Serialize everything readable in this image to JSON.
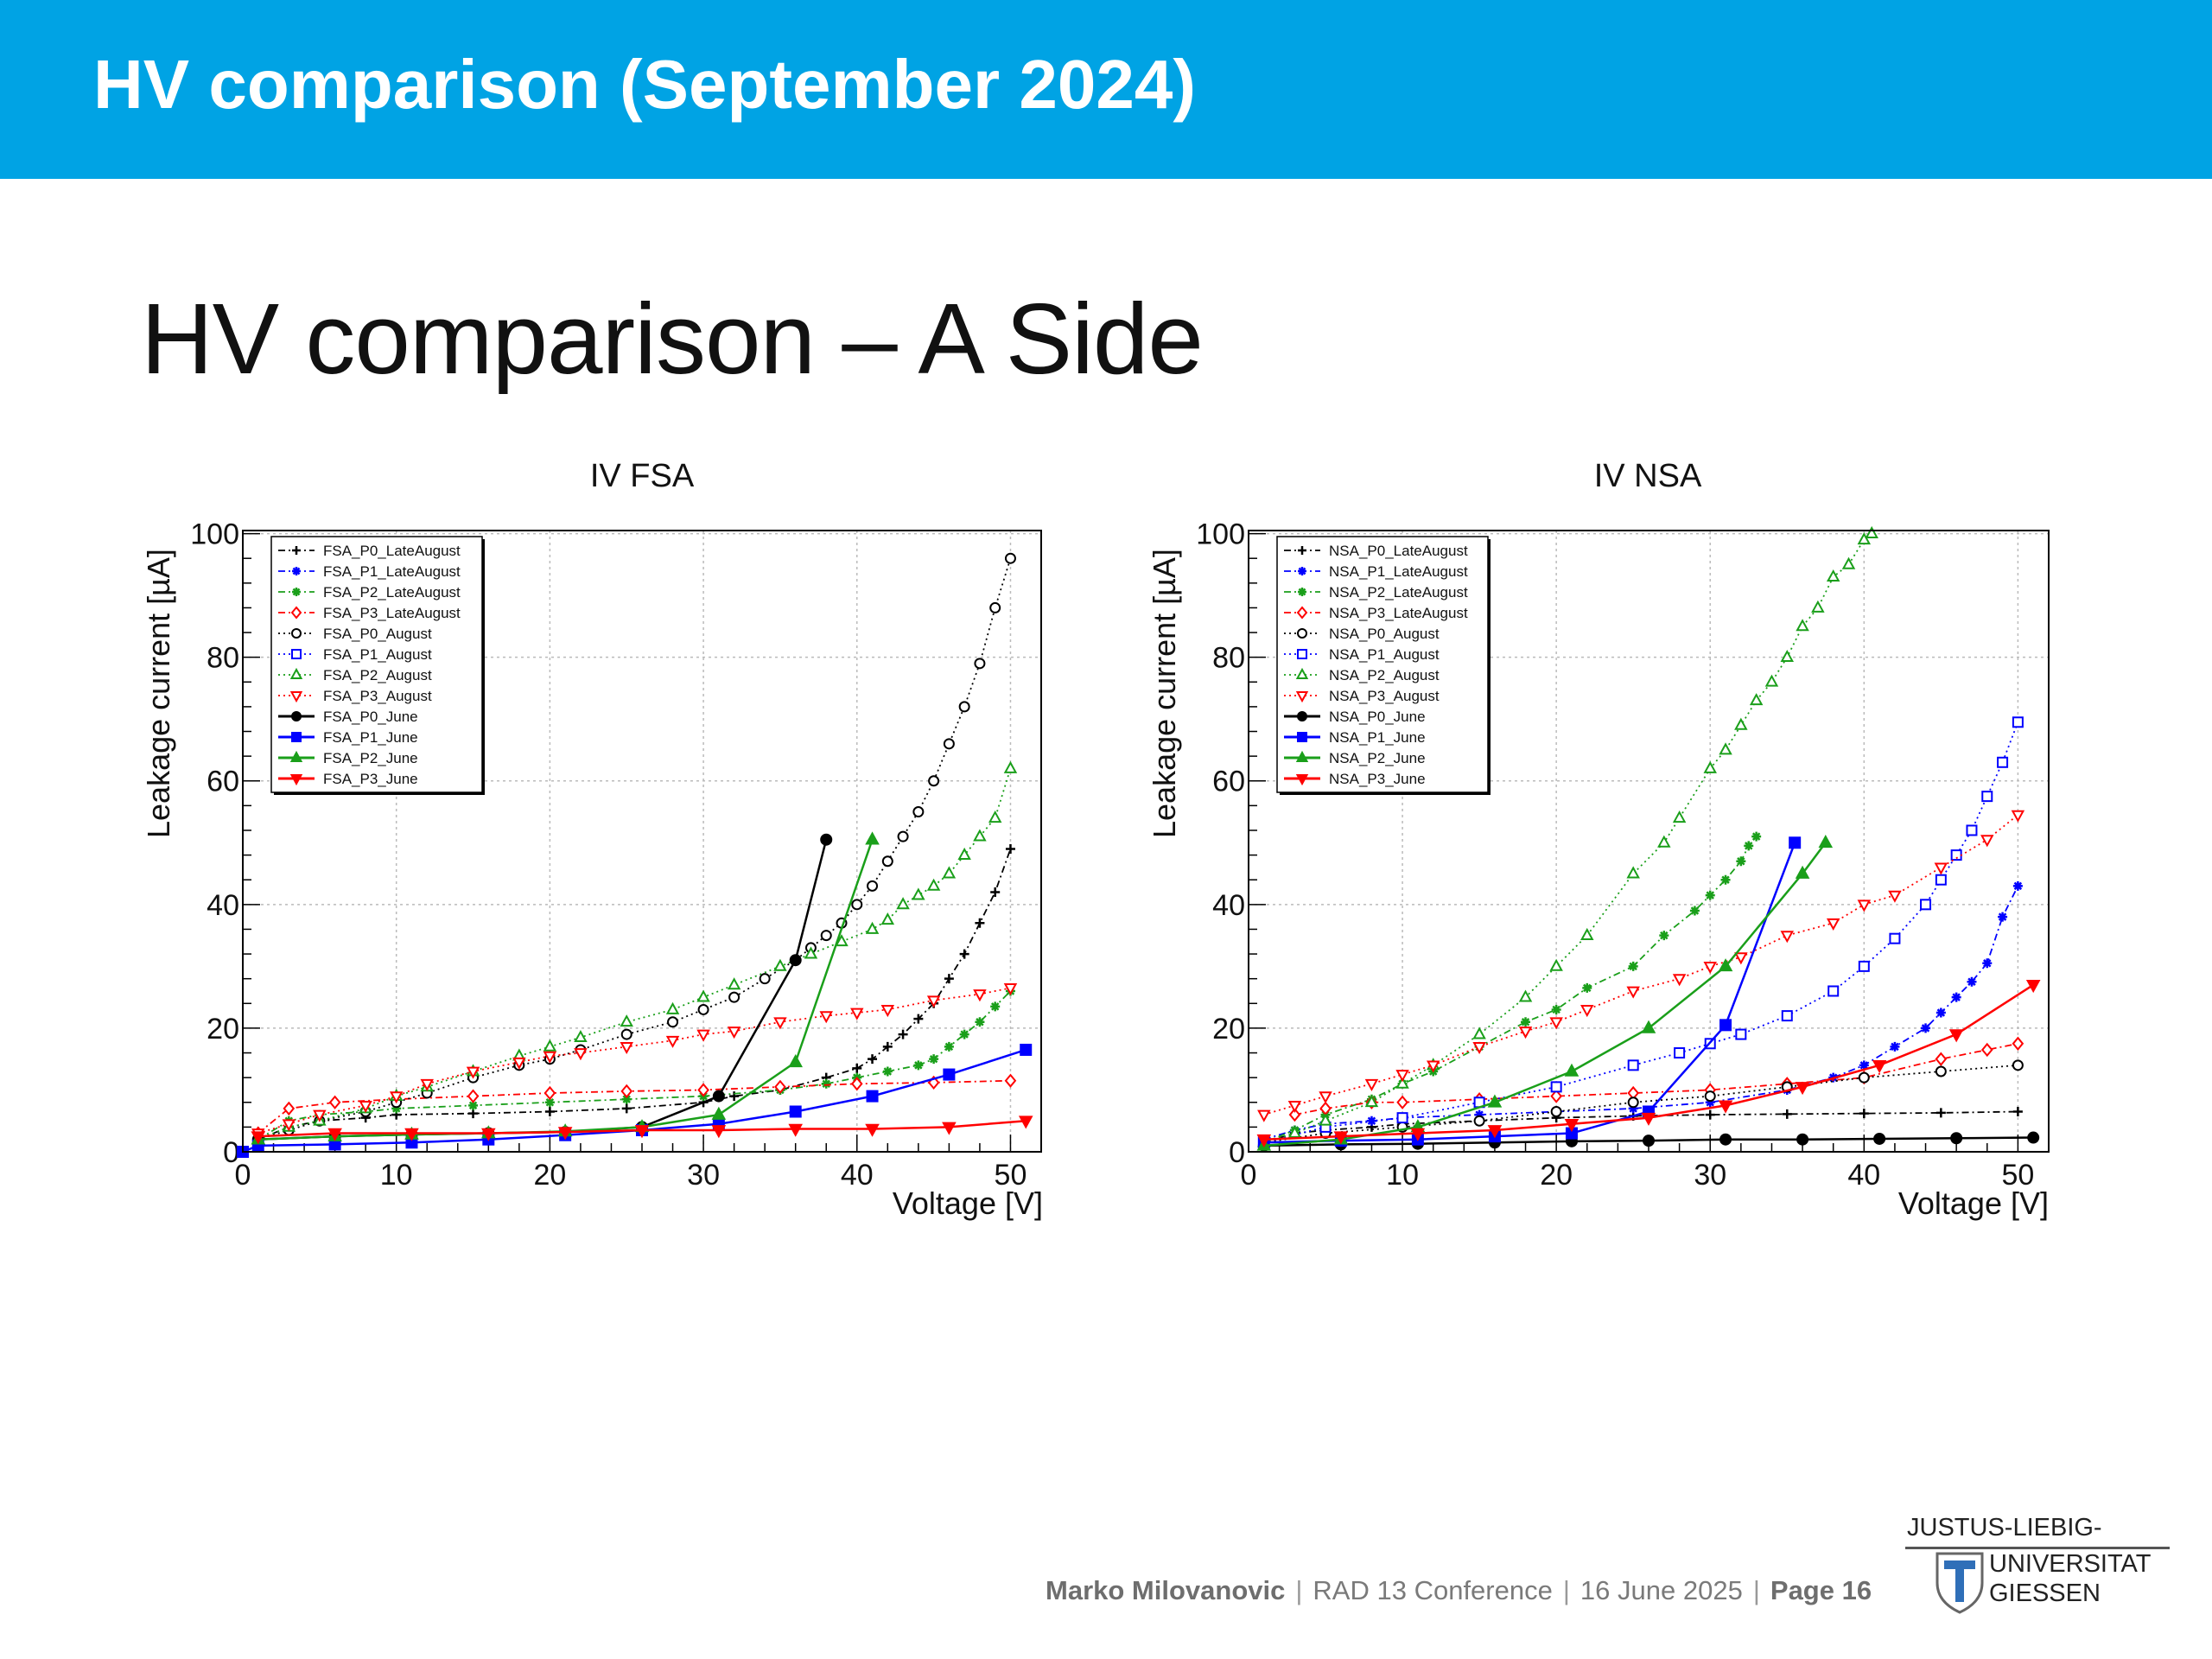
{
  "header": {
    "title": "HV comparison (September 2024)",
    "background_color": "#00a3e4"
  },
  "slide_title": "HV comparison – A Side",
  "footer": {
    "author": "Marko Milovanovic",
    "conference": "RAD 13 Conference",
    "date": "16 June 2025",
    "page": "Page 16"
  },
  "logo": {
    "line1": "JUSTUS-LIEBIG-",
    "line2": "UNIVERSITAT",
    "line3": "GIESSEN"
  },
  "chart_data": [
    {
      "type": "line",
      "title": "IV FSA",
      "xlabel": "Voltage [V]",
      "ylabel": "Leakage current [µA]",
      "xlim": [
        0,
        52
      ],
      "ylim": [
        0,
        100.5
      ],
      "xticks": [
        0,
        10,
        20,
        30,
        40,
        50
      ],
      "yticks": [
        0,
        20,
        40,
        60,
        80,
        100
      ],
      "grid": true,
      "legend": "top-left",
      "series": [
        {
          "name": "FSA_P0_LateAugust",
          "color": "#000000",
          "marker": "plus",
          "line": "dashdot",
          "x": [
            1,
            3,
            5,
            8,
            10,
            15,
            20,
            25,
            30,
            32,
            35,
            38,
            40,
            41,
            42,
            43,
            44,
            45,
            46,
            47,
            48,
            49,
            50
          ],
          "y": [
            2,
            4,
            5,
            5.5,
            6,
            6.2,
            6.5,
            7,
            8,
            9,
            10,
            12,
            13.5,
            15,
            17,
            19,
            21.5,
            24,
            28,
            32,
            37,
            42,
            49
          ]
        },
        {
          "name": "FSA_P1_LateAugust",
          "color": "#0000ff",
          "marker": "star",
          "line": "dashdot",
          "x": [],
          "y": []
        },
        {
          "name": "FSA_P2_LateAugust",
          "color": "#1a9f1a",
          "marker": "star",
          "line": "dashdot",
          "x": [
            1,
            3,
            5,
            8,
            10,
            15,
            20,
            25,
            30,
            35,
            38,
            40,
            42,
            44,
            45,
            46,
            47,
            48,
            49,
            50
          ],
          "y": [
            2,
            5,
            6,
            6.5,
            7,
            7.5,
            8,
            8.5,
            9,
            10,
            11,
            12,
            13,
            14,
            15,
            17,
            19,
            21,
            23.5,
            26
          ]
        },
        {
          "name": "FSA_P3_LateAugust",
          "color": "#ff0000",
          "marker": "diamond",
          "line": "dashdot",
          "x": [
            1,
            3,
            6,
            10,
            15,
            20,
            25,
            30,
            35,
            40,
            45,
            50
          ],
          "y": [
            3,
            7,
            8,
            8.5,
            9,
            9.5,
            9.8,
            10,
            10.5,
            11,
            11.2,
            11.5
          ]
        },
        {
          "name": "FSA_P0_August",
          "color": "#000000",
          "marker": "circle-open",
          "line": "dotted",
          "x": [
            1,
            3,
            5,
            8,
            10,
            12,
            15,
            18,
            20,
            22,
            25,
            28,
            30,
            32,
            34,
            36,
            37,
            38,
            39,
            40,
            41,
            42,
            43,
            44,
            45,
            46,
            47,
            48,
            49,
            50
          ],
          "y": [
            2,
            3.5,
            5,
            6.5,
            8,
            9.5,
            12,
            14,
            15,
            16.5,
            19,
            21,
            23,
            25,
            28,
            31,
            33,
            35,
            37,
            40,
            43,
            47,
            51,
            55,
            60,
            66,
            72,
            79,
            88,
            96
          ]
        },
        {
          "name": "FSA_P1_August",
          "color": "#0000ff",
          "marker": "square-open",
          "line": "dotted",
          "x": [],
          "y": []
        },
        {
          "name": "FSA_P2_August",
          "color": "#1a9f1a",
          "marker": "triangle-up-open",
          "line": "dotted",
          "x": [
            1,
            3,
            5,
            8,
            10,
            12,
            15,
            18,
            20,
            22,
            25,
            28,
            30,
            32,
            35,
            37,
            39,
            41,
            42,
            43,
            44,
            45,
            46,
            47,
            48,
            49,
            50
          ],
          "y": [
            2,
            4,
            5,
            7,
            9,
            10.5,
            13,
            15.5,
            17,
            18.5,
            21,
            23,
            25,
            27,
            30,
            32,
            34,
            36,
            37.5,
            40,
            41.5,
            43,
            45,
            48,
            51,
            54,
            62
          ]
        },
        {
          "name": "FSA_P3_August",
          "color": "#ff0000",
          "marker": "triangle-down-open",
          "line": "dotted",
          "x": [
            1,
            3,
            5,
            8,
            10,
            12,
            15,
            18,
            20,
            22,
            25,
            28,
            30,
            32,
            35,
            38,
            40,
            42,
            45,
            48,
            50
          ],
          "y": [
            3,
            4.5,
            6,
            7.5,
            9,
            11,
            13,
            14.5,
            15.5,
            16,
            17,
            18,
            19,
            19.5,
            21,
            22,
            22.5,
            23,
            24.5,
            25.5,
            26.5
          ]
        },
        {
          "name": "FSA_P0_June",
          "color": "#000000",
          "marker": "circle",
          "line": "solid",
          "x": [
            1,
            6,
            11,
            16,
            21,
            26,
            31,
            36,
            38
          ],
          "y": [
            2,
            2.5,
            2.8,
            3,
            3.2,
            4,
            9,
            31,
            50.5
          ]
        },
        {
          "name": "FSA_P1_June",
          "color": "#0000ff",
          "marker": "square",
          "line": "solid",
          "x": [
            0,
            1,
            6,
            11,
            16,
            21,
            26,
            31,
            36,
            41,
            46,
            51
          ],
          "y": [
            0,
            1,
            1.2,
            1.5,
            2,
            2.7,
            3.5,
            4.5,
            6.5,
            9,
            12.5,
            16.5
          ]
        },
        {
          "name": "FSA_P2_June",
          "color": "#1a9f1a",
          "marker": "triangle-up",
          "line": "solid",
          "x": [
            1,
            6,
            11,
            16,
            21,
            26,
            31,
            36,
            41
          ],
          "y": [
            2,
            2.5,
            2.8,
            3,
            3.3,
            4,
            6,
            14.5,
            50.5
          ]
        },
        {
          "name": "FSA_P3_June",
          "color": "#ff0000",
          "marker": "triangle-down",
          "line": "solid",
          "x": [
            1,
            6,
            11,
            16,
            21,
            26,
            31,
            36,
            41,
            46,
            51
          ],
          "y": [
            2.5,
            3,
            3,
            3,
            3.2,
            3.5,
            3.5,
            3.7,
            3.7,
            4,
            5
          ]
        }
      ]
    },
    {
      "type": "line",
      "title": "IV NSA",
      "xlabel": "Voltage [V]",
      "ylabel": "Leakage current [µA]",
      "xlim": [
        0,
        52
      ],
      "ylim": [
        0,
        100.5
      ],
      "xticks": [
        0,
        10,
        20,
        30,
        40,
        50
      ],
      "yticks": [
        0,
        20,
        40,
        60,
        80,
        100
      ],
      "grid": true,
      "legend": "top-left",
      "series": [
        {
          "name": "NSA_P0_LateAugust",
          "color": "#000000",
          "marker": "plus",
          "line": "dashdot",
          "x": [
            1,
            3,
            5,
            8,
            10,
            15,
            20,
            25,
            30,
            35,
            40,
            45,
            50
          ],
          "y": [
            1.5,
            3,
            3.5,
            4,
            4.5,
            5,
            5.5,
            5.8,
            6,
            6.1,
            6.2,
            6.3,
            6.5
          ]
        },
        {
          "name": "NSA_P1_LateAugust",
          "color": "#0000ff",
          "marker": "star",
          "line": "dashdot",
          "x": [
            1,
            3,
            5,
            8,
            10,
            15,
            20,
            25,
            30,
            35,
            38,
            40,
            42,
            44,
            45,
            46,
            47,
            48,
            49,
            50
          ],
          "y": [
            2,
            3.5,
            4.5,
            5,
            5.5,
            6,
            6.5,
            7,
            8,
            10,
            12,
            14,
            17,
            20,
            22.5,
            25,
            27.5,
            30.5,
            38,
            43
          ]
        },
        {
          "name": "NSA_P2_LateAugust",
          "color": "#1a9f1a",
          "marker": "star",
          "line": "dashdot",
          "x": [
            1,
            3,
            5,
            8,
            10,
            12,
            15,
            18,
            20,
            22,
            25,
            27,
            29,
            30,
            31,
            32,
            32.5,
            33
          ],
          "y": [
            1.5,
            3.5,
            6,
            8.5,
            11,
            13,
            17,
            21,
            23,
            26.5,
            30,
            35,
            39,
            41.5,
            44,
            47,
            49.5,
            51
          ]
        },
        {
          "name": "NSA_P3_LateAugust",
          "color": "#ff0000",
          "marker": "diamond",
          "line": "dashdot",
          "x": [
            3,
            5,
            8,
            10,
            15,
            20,
            25,
            30,
            35,
            40,
            45,
            48,
            50
          ],
          "y": [
            6,
            7,
            8,
            8,
            8.5,
            9,
            9.5,
            10,
            11,
            12,
            15,
            16.5,
            17.5
          ]
        },
        {
          "name": "NSA_P0_August",
          "color": "#000000",
          "marker": "circle-open",
          "line": "dotted",
          "x": [
            1,
            5,
            10,
            15,
            20,
            25,
            30,
            35,
            40,
            45,
            50
          ],
          "y": [
            1.5,
            3,
            4,
            5,
            6.5,
            8,
            9,
            10.5,
            12,
            13,
            14
          ]
        },
        {
          "name": "NSA_P1_August",
          "color": "#0000ff",
          "marker": "square-open",
          "line": "dotted",
          "x": [
            1,
            5,
            10,
            15,
            20,
            25,
            28,
            30,
            32,
            35,
            38,
            40,
            42,
            44,
            45,
            46,
            47,
            48,
            49,
            50
          ],
          "y": [
            1.5,
            4,
            5.5,
            8,
            10.5,
            14,
            16,
            17.5,
            19,
            22,
            26,
            30,
            34.5,
            40,
            44,
            48,
            52,
            57.5,
            63,
            69.5
          ]
        },
        {
          "name": "NSA_P2_August",
          "color": "#1a9f1a",
          "marker": "triangle-up-open",
          "line": "dotted",
          "x": [
            1,
            3,
            5,
            8,
            10,
            12,
            15,
            18,
            20,
            22,
            25,
            27,
            28,
            30,
            31,
            32,
            33,
            34,
            35,
            36,
            37,
            38,
            39,
            40,
            40.5
          ],
          "y": [
            1.5,
            3,
            5,
            8,
            11,
            14,
            19,
            25,
            30,
            35,
            45,
            50,
            54,
            62,
            65,
            69,
            73,
            76,
            80,
            85,
            88,
            93,
            95,
            99,
            100
          ]
        },
        {
          "name": "NSA_P3_August",
          "color": "#ff0000",
          "marker": "triangle-down-open",
          "line": "dotted",
          "x": [
            1,
            3,
            5,
            8,
            10,
            12,
            15,
            18,
            20,
            22,
            25,
            28,
            30,
            32,
            35,
            38,
            40,
            42,
            45,
            48,
            50
          ],
          "y": [
            6,
            7.5,
            9,
            11,
            12.5,
            14,
            17,
            19.5,
            21,
            23,
            26,
            28,
            30,
            31.5,
            35,
            37,
            40,
            41.5,
            46,
            50.5,
            54.5
          ]
        },
        {
          "name": "NSA_P0_June",
          "color": "#000000",
          "marker": "circle",
          "line": "solid",
          "x": [
            1,
            6,
            11,
            16,
            21,
            26,
            31,
            36,
            41,
            46,
            51
          ],
          "y": [
            1,
            1.2,
            1.3,
            1.5,
            1.7,
            1.8,
            2,
            2,
            2.1,
            2.2,
            2.3
          ]
        },
        {
          "name": "NSA_P1_June",
          "color": "#0000ff",
          "marker": "square",
          "line": "solid",
          "x": [
            1,
            6,
            11,
            16,
            21,
            26,
            31,
            35.5
          ],
          "y": [
            1.5,
            1.8,
            2,
            2.5,
            3,
            6.5,
            20.5,
            50
          ]
        },
        {
          "name": "NSA_P2_June",
          "color": "#1a9f1a",
          "marker": "triangle-up",
          "line": "solid",
          "x": [
            1,
            6,
            11,
            16,
            21,
            26,
            31,
            36,
            37.5
          ],
          "y": [
            1,
            2,
            4,
            8,
            13,
            20,
            30,
            45,
            50
          ]
        },
        {
          "name": "NSA_P3_June",
          "color": "#ff0000",
          "marker": "triangle-down",
          "line": "solid",
          "x": [
            1,
            6,
            11,
            16,
            21,
            26,
            31,
            36,
            41,
            46,
            51
          ],
          "y": [
            2,
            2.5,
            3,
            3.5,
            4.5,
            5.5,
            7.5,
            10.5,
            14,
            19,
            27
          ]
        }
      ]
    }
  ]
}
